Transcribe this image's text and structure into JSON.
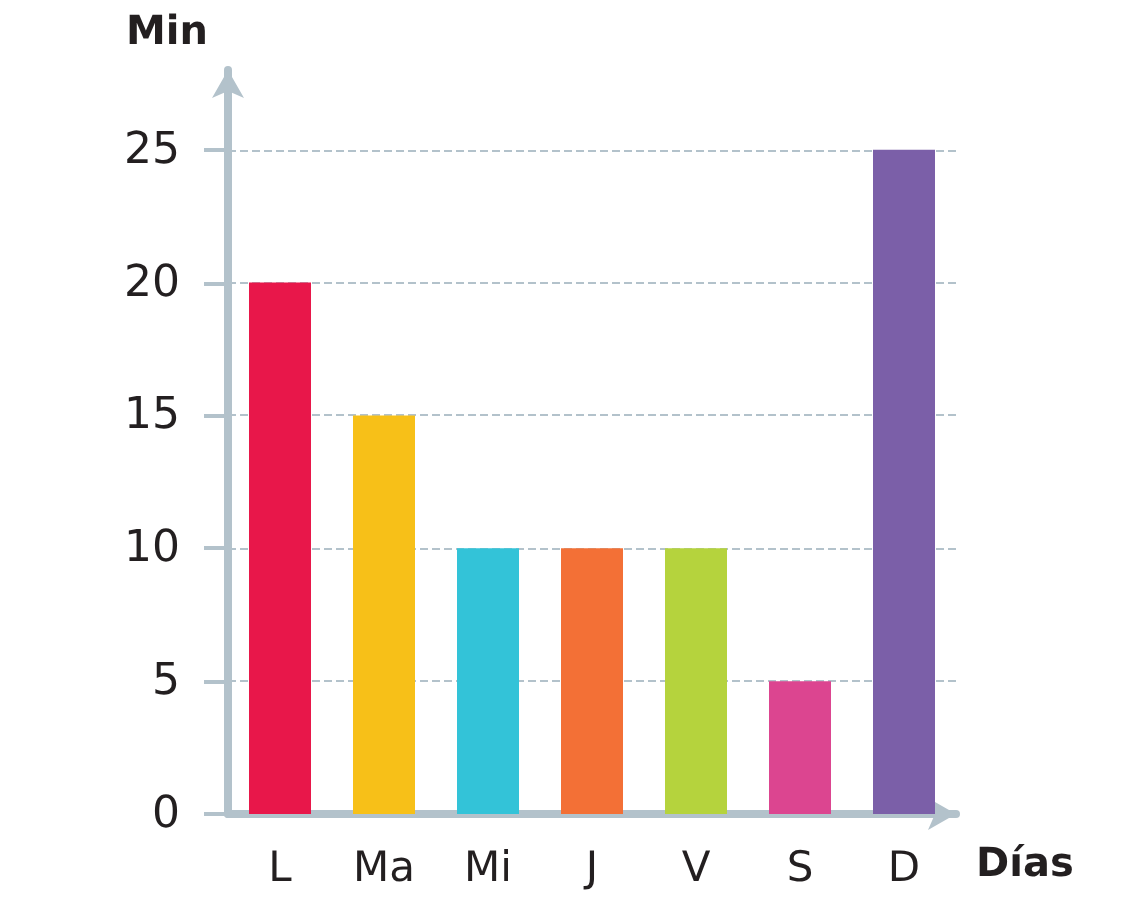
{
  "chart_data": {
    "type": "bar",
    "xlabel": "Días",
    "ylabel": "Min",
    "categories": [
      "L",
      "Ma",
      "Mi",
      "J",
      "V",
      "S",
      "D"
    ],
    "values": [
      20,
      15,
      10,
      10,
      10,
      5,
      25
    ],
    "colors": [
      "#e8174a",
      "#f7c018",
      "#33c3d8",
      "#f37036",
      "#b5d33d",
      "#dc4590",
      "#7b5fa8"
    ],
    "ylim": [
      0,
      28
    ],
    "yticks": [
      0,
      5,
      10,
      15,
      20,
      25
    ],
    "grid": "y"
  }
}
